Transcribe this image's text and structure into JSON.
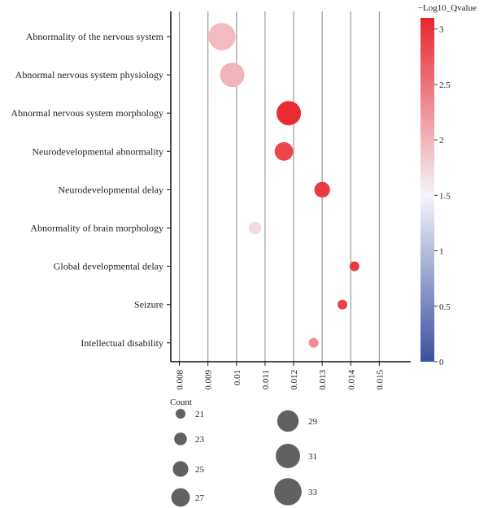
{
  "chart_data": {
    "type": "scatter",
    "color_title": "−Log10_Qvalue",
    "size_title": "Count",
    "xlim": [
      0.0077,
      0.0161
    ],
    "x_ticks": [
      0.008,
      0.009,
      0.01,
      0.011,
      0.012,
      0.013,
      0.014,
      0.015
    ],
    "x_tick_labels": [
      "0.008",
      "0.009",
      "0.01",
      "0.011",
      "0.012",
      "0.013",
      "0.014",
      "0.015"
    ],
    "grid": true,
    "colorbar": {
      "min": 0,
      "max": 3.1,
      "ticks": [
        0,
        0.5,
        1,
        1.5,
        2,
        2.5,
        3
      ],
      "tick_labels": [
        "0",
        "0.5",
        "1",
        "1.5",
        "2",
        "2.5",
        "3"
      ],
      "colors": [
        "#3a4fa0",
        "#f5f5fb",
        "#e8252c"
      ],
      "placement": "right"
    },
    "size_legend": {
      "placement": "bottom",
      "counts": [
        21,
        23,
        25,
        27,
        29,
        31,
        33
      ],
      "labels": [
        "21",
        "23",
        "25",
        "27",
        "29",
        "31",
        "33"
      ],
      "fill": "#616161"
    },
    "points": [
      {
        "term": "Abnormality of the nervous system",
        "x": 0.00949,
        "count": 33,
        "neglog10q": 1.95
      },
      {
        "term": "Abnormal nervous system physiology",
        "x": 0.00985,
        "count": 31,
        "neglog10q": 2.0
      },
      {
        "term": "Abnormal nervous system morphology",
        "x": 0.01183,
        "count": 31,
        "neglog10q": 3.05
      },
      {
        "term": "Neurodevelopmental abnormality",
        "x": 0.01166,
        "count": 27,
        "neglog10q": 2.85
      },
      {
        "term": "Neurodevelopmental delay",
        "x": 0.013,
        "count": 25,
        "neglog10q": 2.95
      },
      {
        "term": "Abnormality of brain morphology",
        "x": 0.01065,
        "count": 23,
        "neglog10q": 1.7
      },
      {
        "term": "Global developmental delay",
        "x": 0.01413,
        "count": 21,
        "neglog10q": 2.95
      },
      {
        "term": "Seizure",
        "x": 0.01371,
        "count": 21,
        "neglog10q": 2.9
      },
      {
        "term": "Intellectual disability",
        "x": 0.0127,
        "count": 21,
        "neglog10q": 2.3
      }
    ]
  }
}
